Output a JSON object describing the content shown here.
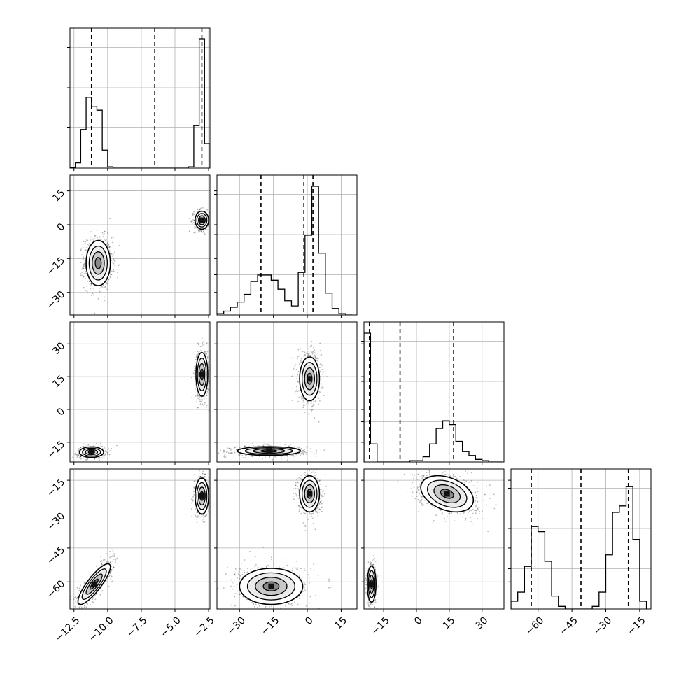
{
  "chart_data": {
    "type": "corner",
    "description_of_panels": "lower-triangular corner plot of 4 parameters",
    "grid": true,
    "params": [
      {
        "xlim": [
          -12.8,
          -2.4
        ],
        "ticks": [
          -12.5,
          -10.0,
          -7.5,
          -5.0,
          -2.5
        ],
        "tick_labels": [
          "−12.5",
          "−10.0",
          "−7.5",
          "−5.0",
          "−2.5"
        ],
        "quantiles": [
          -11.2,
          -6.5,
          -3.0
        ]
      },
      {
        "xlim": [
          -40,
          22
        ],
        "ticks": [
          -30,
          -15,
          0,
          15
        ],
        "tick_labels": [
          "−30",
          "−15",
          "0",
          "15"
        ],
        "quantiles": [
          -20.5,
          -1.5,
          2.5
        ]
      },
      {
        "xlim": [
          -24,
          40
        ],
        "ticks": [
          -15,
          0,
          15,
          30
        ],
        "tick_labels": [
          "−15",
          "0",
          "15",
          "30"
        ],
        "quantiles": [
          -21.5,
          -7.5,
          17.0
        ]
      },
      {
        "xlim": [
          -72,
          -10
        ],
        "ticks": [
          -60,
          -45,
          -30,
          -15
        ],
        "tick_labels": [
          "−60",
          "−45",
          "−30",
          "−15"
        ],
        "quantiles": [
          -63.0,
          -41.0,
          -20.0
        ]
      }
    ],
    "y_ticks_by_row": {
      "1": {
        "ticks": [
          -30,
          -15,
          0,
          15
        ],
        "tick_labels": [
          "−30",
          "−15",
          "0",
          "15"
        ]
      },
      "2": {
        "ticks": [
          -15,
          0,
          15,
          30
        ],
        "tick_labels": [
          "−15",
          "0",
          "15",
          "30"
        ]
      },
      "3": {
        "ticks": [
          -60,
          -45,
          -30,
          -15
        ],
        "tick_labels": [
          "−60",
          "−45",
          "−30",
          "−15"
        ]
      }
    },
    "histograms": [
      {
        "param": 0,
        "bin_edges": [
          -12.8,
          -12.4,
          -12.0,
          -11.6,
          -11.2,
          -10.8,
          -10.4,
          -10.0,
          -9.6,
          -9.2,
          -8.8,
          -8.4,
          -4.0,
          -3.6,
          -3.2,
          -2.8,
          -2.4
        ],
        "counts": [
          0.005,
          0.04,
          0.3,
          0.55,
          0.48,
          0.45,
          0.14,
          0.01,
          0,
          0,
          0,
          0.0,
          0.01,
          0.33,
          1.0,
          0.19
        ]
      },
      {
        "param": 1,
        "bin_edges": [
          -40,
          -37,
          -34,
          -31,
          -28,
          -25,
          -22,
          -19,
          -16,
          -13,
          -10,
          -7,
          -4,
          -1,
          2,
          5,
          8,
          11,
          14,
          17,
          20
        ],
        "counts": [
          0.01,
          0.03,
          0.06,
          0.1,
          0.16,
          0.26,
          0.31,
          0.31,
          0.27,
          0.2,
          0.11,
          0.07,
          0.33,
          0.62,
          1.0,
          0.48,
          0.17,
          0.05,
          0.01,
          0
        ]
      },
      {
        "param": 2,
        "bin_edges": [
          -24,
          -21,
          -18,
          -15,
          -12,
          -9,
          -6,
          -3,
          0,
          3,
          6,
          9,
          12,
          15,
          18,
          21,
          24,
          27,
          30,
          33,
          36,
          39
        ],
        "counts": [
          1.0,
          0.14,
          0,
          0,
          0,
          0,
          0,
          0.01,
          0.01,
          0.04,
          0.14,
          0.26,
          0.32,
          0.29,
          0.16,
          0.08,
          0.05,
          0.02,
          0.01,
          0,
          0
        ]
      },
      {
        "param": 3,
        "bin_edges": [
          -72,
          -69,
          -66,
          -63,
          -60,
          -57,
          -54,
          -51,
          -48,
          -45,
          -42,
          -39,
          -36,
          -33,
          -30,
          -27,
          -24,
          -21,
          -18,
          -15,
          -12
        ],
        "counts": [
          0.06,
          0.13,
          0.33,
          0.64,
          0.6,
          0.37,
          0.1,
          0.02,
          0,
          0,
          0,
          0,
          0.02,
          0.13,
          0.42,
          0.75,
          0.8,
          0.95,
          0.54,
          0.06
        ]
      }
    ],
    "pairs": [
      {
        "row": 1,
        "col": 0,
        "clusters": [
          {
            "cx": -10.7,
            "cy": -17.0,
            "sx": 0.45,
            "sy": 5.0,
            "rho": 0.0,
            "n": 900,
            "core": false
          },
          {
            "cx": -3.0,
            "cy": 2.0,
            "sx": 0.25,
            "sy": 2.0,
            "rho": 0.0,
            "n": 450,
            "core": true
          }
        ]
      },
      {
        "row": 2,
        "col": 0,
        "clusters": [
          {
            "cx": -3.0,
            "cy": 16.0,
            "sx": 0.22,
            "sy": 5.0,
            "rho": 0.0,
            "n": 550,
            "core": true
          },
          {
            "cx": -11.2,
            "cy": -19.5,
            "sx": 0.45,
            "sy": 1.2,
            "rho": 0.0,
            "n": 500,
            "core": true
          }
        ]
      },
      {
        "row": 2,
        "col": 1,
        "clusters": [
          {
            "cx": 1.0,
            "cy": 14.0,
            "sx": 2.2,
            "sy": 5.0,
            "rho": 0.0,
            "n": 700,
            "core": true
          },
          {
            "cx": -17.0,
            "cy": -19.0,
            "sx": 7.0,
            "sy": 1.0,
            "rho": 0.0,
            "n": 650,
            "core": true
          }
        ]
      },
      {
        "row": 3,
        "col": 0,
        "clusters": [
          {
            "cx": -3.0,
            "cy": -22.0,
            "sx": 0.25,
            "sy": 4.0,
            "rho": 0.0,
            "n": 500,
            "core": true
          },
          {
            "cx": -11.0,
            "cy": -61.0,
            "sx": 0.6,
            "sy": 4.5,
            "rho": 0.85,
            "n": 650,
            "core": true
          }
        ]
      },
      {
        "row": 3,
        "col": 1,
        "clusters": [
          {
            "cx": 1.0,
            "cy": -21.0,
            "sx": 2.2,
            "sy": 4.0,
            "rho": 0.0,
            "n": 650,
            "core": true
          },
          {
            "cx": -16.0,
            "cy": -62.0,
            "sx": 7.0,
            "sy": 4.0,
            "rho": 0.0,
            "n": 800,
            "core": true
          }
        ]
      },
      {
        "row": 3,
        "col": 2,
        "clusters": [
          {
            "cx": 14.0,
            "cy": -21.0,
            "sx": 6.0,
            "sy": 4.0,
            "rho": -0.35,
            "n": 800,
            "core": true
          },
          {
            "cx": -20.5,
            "cy": -61.0,
            "sx": 1.0,
            "sy": 4.0,
            "rho": 0.0,
            "n": 500,
            "core": true
          }
        ]
      }
    ]
  }
}
